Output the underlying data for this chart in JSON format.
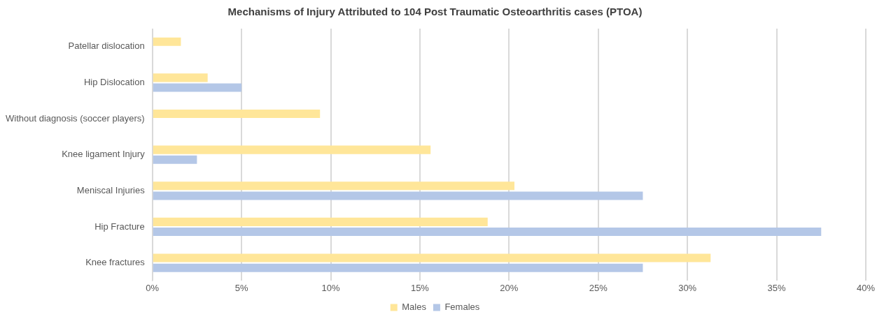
{
  "chart_data": {
    "type": "bar",
    "orientation": "horizontal",
    "title": "Mechanisms of Injury Attributed to 104 Post Traumatic Osteoarthritis cases (PTOA)",
    "categories": [
      "Patellar dislocation",
      "Hip Dislocation",
      "Without diagnosis (soccer players)",
      "Knee ligament Injury",
      "Meniscal Injuries",
      "Hip Fracture",
      "Knee fractures"
    ],
    "series": [
      {
        "name": "Males",
        "color": "#ffe699",
        "values": [
          1.6,
          3.1,
          9.4,
          15.6,
          20.3,
          18.8,
          31.3
        ]
      },
      {
        "name": "Females",
        "color": "#b4c7e7",
        "values": [
          null,
          5.0,
          null,
          2.5,
          27.5,
          37.5,
          27.5
        ]
      }
    ],
    "xlim": [
      0,
      40
    ],
    "xticks": [
      {
        "value": 0,
        "label": "0%"
      },
      {
        "value": 5,
        "label": "5%"
      },
      {
        "value": 10,
        "label": "10%"
      },
      {
        "value": 15,
        "label": "15%"
      },
      {
        "value": 20,
        "label": "20%"
      },
      {
        "value": 25,
        "label": "25%"
      },
      {
        "value": 30,
        "label": "30%"
      },
      {
        "value": 35,
        "label": "35%"
      },
      {
        "value": 40,
        "label": "40%"
      }
    ],
    "grid": "x",
    "legend": "bottom"
  }
}
